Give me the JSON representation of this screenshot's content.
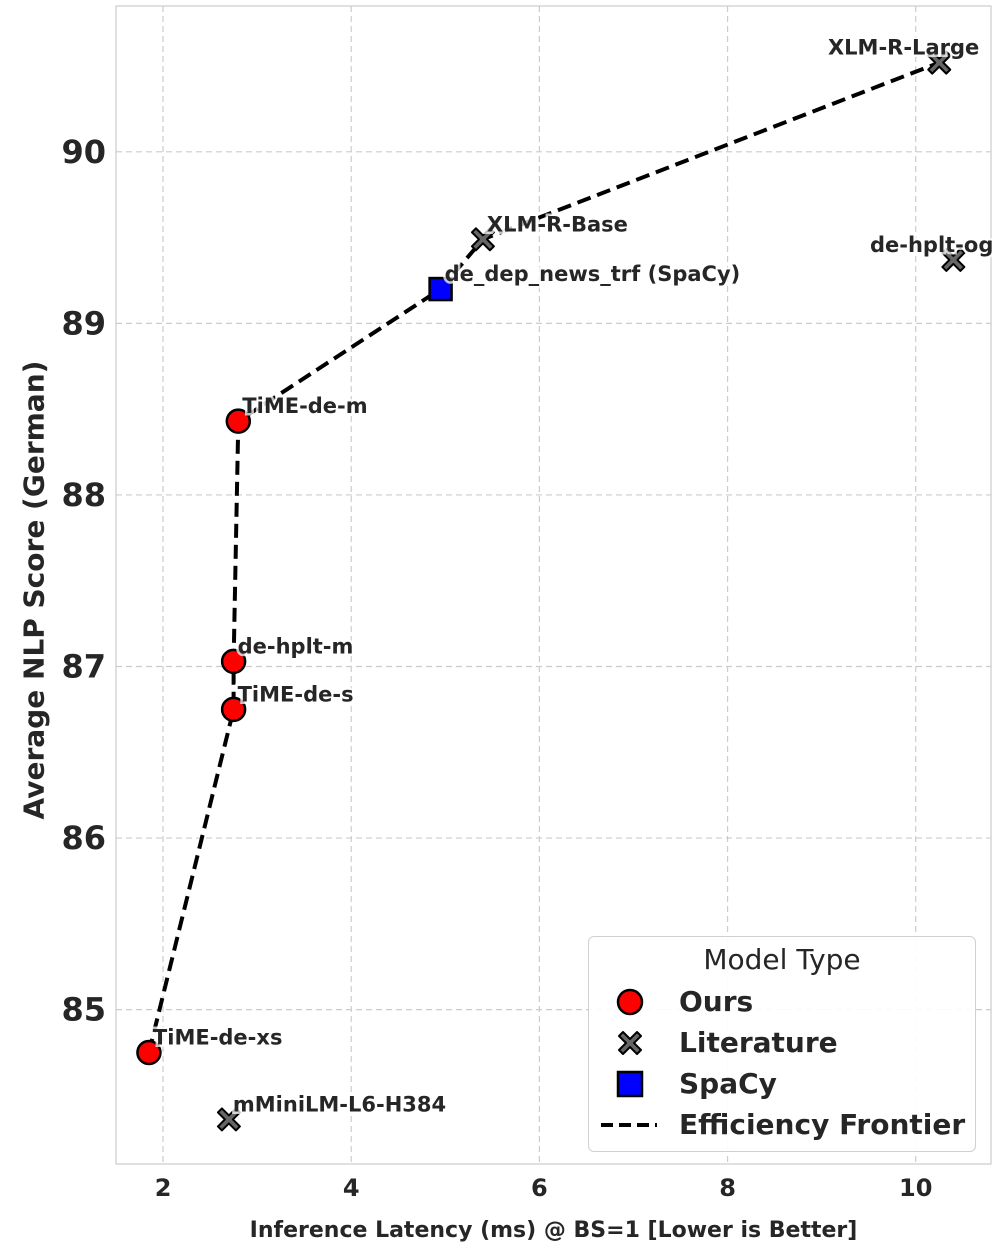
{
  "chart_data": {
    "type": "scatter",
    "xlabel": "Inference Latency (ms) @ BS=1 [Lower is Better]",
    "ylabel": "Average NLP Score (German)",
    "xlim": [
      1.5,
      10.8
    ],
    "ylim": [
      84.1,
      90.85
    ],
    "xticks": [
      2,
      4,
      6,
      8,
      10
    ],
    "yticks": [
      85,
      86,
      87,
      88,
      89,
      90
    ],
    "grid": true,
    "legend_title": "Model Type",
    "legend_position": "lower-right",
    "series": [
      {
        "name": "Ours",
        "marker": "circle",
        "color": "#ff0000",
        "points": [
          {
            "label": "TiME-de-m",
            "x": 2.8,
            "y": 88.43
          },
          {
            "label": "de-hplt-m",
            "x": 2.75,
            "y": 87.03
          },
          {
            "label": "TiME-de-s",
            "x": 2.75,
            "y": 86.75
          },
          {
            "label": "TiME-de-xs",
            "x": 1.85,
            "y": 84.75
          }
        ]
      },
      {
        "name": "Literature",
        "marker": "x",
        "color": "#666666",
        "points": [
          {
            "label": "XLM-R-Large",
            "x": 10.25,
            "y": 90.52
          },
          {
            "label": "XLM-R-Base",
            "x": 5.4,
            "y": 89.49
          },
          {
            "label": "de-hplt-og",
            "x": 10.4,
            "y": 89.37
          },
          {
            "label": "mMiniLM-L6-H384",
            "x": 2.7,
            "y": 84.36
          }
        ]
      },
      {
        "name": "SpaCy",
        "marker": "square",
        "color": "#0000ff",
        "points": [
          {
            "label": "de_dep_news_trf (SpaCy)",
            "x": 4.95,
            "y": 89.2
          }
        ]
      }
    ],
    "frontier": {
      "name": "Efficiency Frontier",
      "style": "dashed",
      "color": "#000000",
      "points": [
        {
          "x": 1.85,
          "y": 84.75
        },
        {
          "x": 2.75,
          "y": 86.75
        },
        {
          "x": 2.75,
          "y": 87.03
        },
        {
          "x": 2.8,
          "y": 88.43
        },
        {
          "x": 4.95,
          "y": 89.2
        },
        {
          "x": 5.4,
          "y": 89.49
        },
        {
          "x": 10.25,
          "y": 90.52
        }
      ]
    }
  }
}
